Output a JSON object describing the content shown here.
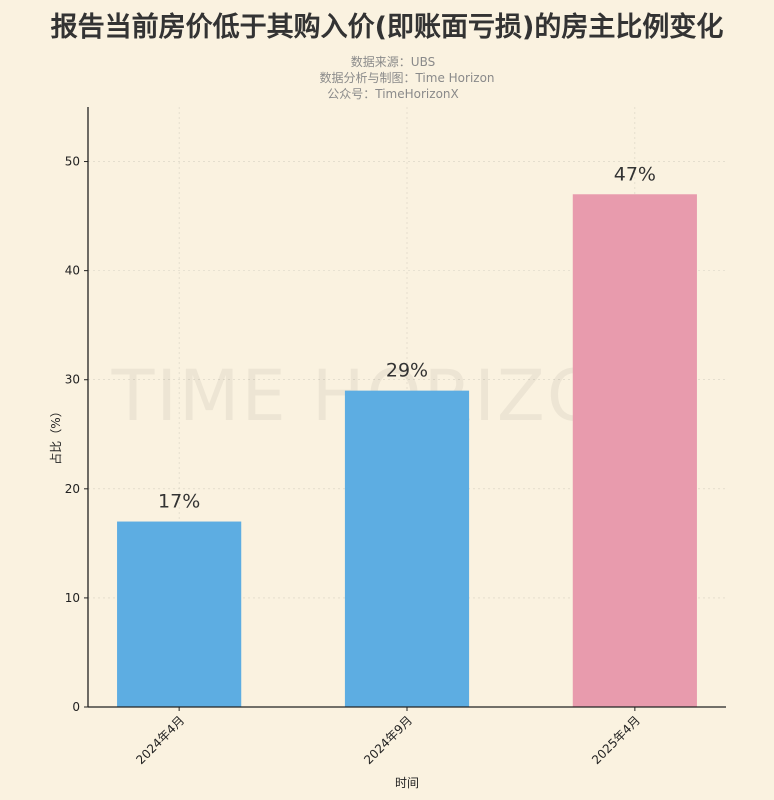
{
  "chart_data": {
    "type": "bar",
    "title": "报告当前房价低于其购入价(即账面亏损)的房主比例变化",
    "subtitle_lines": [
      "数据来源：UBS",
      "数据分析与制图：Time Horizon",
      "公众号：TimeHorizonX"
    ],
    "watermark": "TIME HORIZON",
    "xlabel": "时间",
    "ylabel": "占比（%）",
    "categories": [
      "2024年4月",
      "2024年9月",
      "2025年4月"
    ],
    "values": [
      17,
      29,
      47
    ],
    "data_labels": [
      "17%",
      "29%",
      "47%"
    ],
    "colors": [
      "#5dade2",
      "#5dade2",
      "#e89bad"
    ],
    "ylim": [
      0,
      55
    ],
    "yticks": [
      0,
      10,
      20,
      30,
      40,
      50
    ],
    "grid": true
  }
}
